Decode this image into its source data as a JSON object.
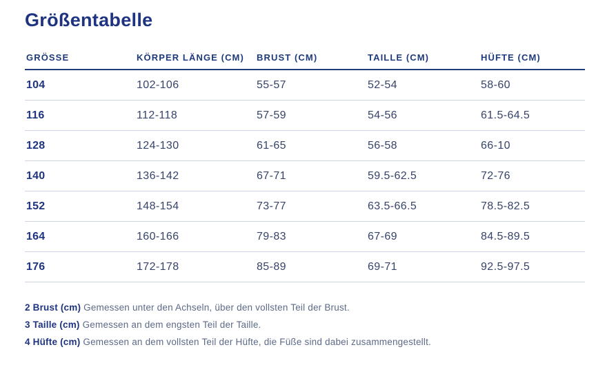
{
  "page": {
    "title": "Größentabelle"
  },
  "colors": {
    "navy": "#1f3480",
    "header_navy": "#1e3a7c",
    "data_text": "#36436a",
    "footnote_text": "#5c6a87",
    "row_divider": "#ccd3e2"
  },
  "table": {
    "columns": [
      "GRÖSSE",
      "KÖRPER LÄNGE (CM)",
      "BRUST (CM)",
      "TAILLE (CM)",
      "HÜFTE (CM)"
    ],
    "rows": [
      [
        "104",
        "102-106",
        "55-57",
        "52-54",
        "58-60"
      ],
      [
        "116",
        "112-118",
        "57-59",
        "54-56",
        "61.5-64.5"
      ],
      [
        "128",
        "124-130",
        "61-65",
        "56-58",
        "66-10"
      ],
      [
        "140",
        "136-142",
        "67-71",
        "59.5-62.5",
        "72-76"
      ],
      [
        "152",
        "148-154",
        "73-77",
        "63.5-66.5",
        "78.5-82.5"
      ],
      [
        "164",
        "160-166",
        "79-83",
        "67-69",
        "84.5-89.5"
      ],
      [
        "176",
        "172-178",
        "85-89",
        "69-71",
        "92.5-97.5"
      ]
    ]
  },
  "footnotes": [
    {
      "label": "2 Brust (cm)",
      "text": "Gemessen unter den Achseln, über den vollsten Teil der Brust."
    },
    {
      "label": "3 Taille (cm)",
      "text": "Gemessen an dem engsten Teil der Taille."
    },
    {
      "label": "4 Hüfte (cm)",
      "text": "Gemessen an dem vollsten Teil der Hüfte, die Füße sind dabei zusammengestellt."
    }
  ]
}
